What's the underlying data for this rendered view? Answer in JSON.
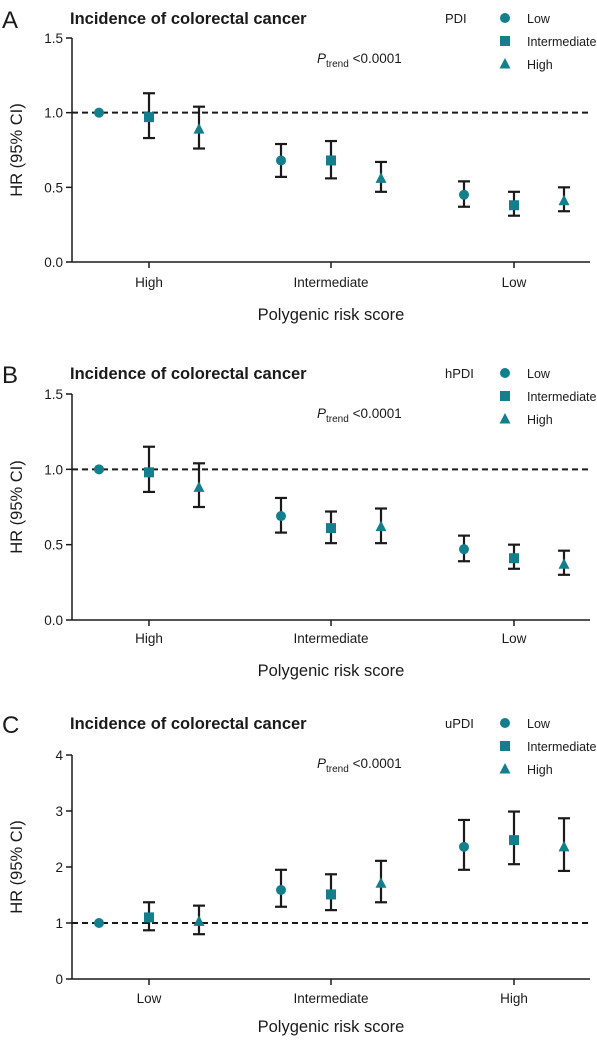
{
  "figure": {
    "panels": [
      "A",
      "B",
      "C"
    ]
  },
  "chart_data": [
    {
      "type": "scatter",
      "panel_label": "A",
      "title": "Incidence of colorectal cancer",
      "xlabel": "Polygenic risk score",
      "ylabel": "HR (95% CI)",
      "categories": [
        "High",
        "Intermediate",
        "Low"
      ],
      "ylim": [
        0,
        1.5
      ],
      "yticks": [
        "0.0",
        "0.5",
        "1.0",
        "1.5"
      ],
      "reference_line": 1.0,
      "legend_title": "PDI",
      "legend_placement": "top-right",
      "p_trend": {
        "symbol": "P",
        "subscript": "trend",
        "text": "<0.0001"
      },
      "color": "#137e8c",
      "series": [
        {
          "name": "Low",
          "marker": "circle",
          "values": [
            1.0,
            0.68,
            0.45
          ],
          "lower": [
            1.0,
            0.57,
            0.37
          ],
          "upper": [
            1.0,
            0.79,
            0.54
          ]
        },
        {
          "name": "Intermediate",
          "marker": "square",
          "values": [
            0.97,
            0.68,
            0.38
          ],
          "lower": [
            0.83,
            0.56,
            0.31
          ],
          "upper": [
            1.13,
            0.81,
            0.47
          ]
        },
        {
          "name": "High",
          "marker": "triangle",
          "values": [
            0.89,
            0.56,
            0.41
          ],
          "lower": [
            0.76,
            0.47,
            0.34
          ],
          "upper": [
            1.04,
            0.67,
            0.5
          ]
        }
      ]
    },
    {
      "type": "scatter",
      "panel_label": "B",
      "title": "Incidence of colorectal cancer",
      "xlabel": "Polygenic risk score",
      "ylabel": "HR (95% CI)",
      "categories": [
        "High",
        "Intermediate",
        "Low"
      ],
      "ylim": [
        0,
        1.5
      ],
      "yticks": [
        "0.0",
        "0.5",
        "1.0",
        "1.5"
      ],
      "reference_line": 1.0,
      "legend_title": "hPDI",
      "legend_placement": "top-right",
      "p_trend": {
        "symbol": "P",
        "subscript": "trend",
        "text": "<0.0001"
      },
      "color": "#137e8c",
      "series": [
        {
          "name": "Low",
          "marker": "circle",
          "values": [
            1.0,
            0.69,
            0.47
          ],
          "lower": [
            1.0,
            0.58,
            0.39
          ],
          "upper": [
            1.0,
            0.81,
            0.56
          ]
        },
        {
          "name": "Intermediate",
          "marker": "square",
          "values": [
            0.98,
            0.61,
            0.41
          ],
          "lower": [
            0.85,
            0.51,
            0.34
          ],
          "upper": [
            1.15,
            0.72,
            0.5
          ]
        },
        {
          "name": "High",
          "marker": "triangle",
          "values": [
            0.88,
            0.62,
            0.37
          ],
          "lower": [
            0.75,
            0.51,
            0.3
          ],
          "upper": [
            1.04,
            0.74,
            0.46
          ]
        }
      ]
    },
    {
      "type": "scatter",
      "panel_label": "C",
      "title": "Incidence of colorectal cancer",
      "xlabel": "Polygenic risk score",
      "ylabel": "HR (95% CI)",
      "categories": [
        "Low",
        "Intermediate",
        "High"
      ],
      "ylim": [
        0,
        4
      ],
      "yticks": [
        "0",
        "1",
        "2",
        "3",
        "4"
      ],
      "reference_line": 1.0,
      "legend_title": "uPDI",
      "legend_placement": "top-right",
      "p_trend": {
        "symbol": "P",
        "subscript": "trend",
        "text": "<0.0001"
      },
      "color": "#137e8c",
      "series": [
        {
          "name": "Low",
          "marker": "circle",
          "values": [
            1.0,
            1.59,
            2.36
          ],
          "lower": [
            1.0,
            1.29,
            1.95
          ],
          "upper": [
            1.0,
            1.95,
            2.84
          ]
        },
        {
          "name": "Intermediate",
          "marker": "square",
          "values": [
            1.1,
            1.51,
            2.48
          ],
          "lower": [
            0.87,
            1.23,
            2.05
          ],
          "upper": [
            1.37,
            1.87,
            2.99
          ]
        },
        {
          "name": "High",
          "marker": "triangle",
          "values": [
            1.03,
            1.71,
            2.36
          ],
          "lower": [
            0.8,
            1.37,
            1.93
          ],
          "upper": [
            1.31,
            2.11,
            2.87
          ]
        }
      ]
    }
  ]
}
